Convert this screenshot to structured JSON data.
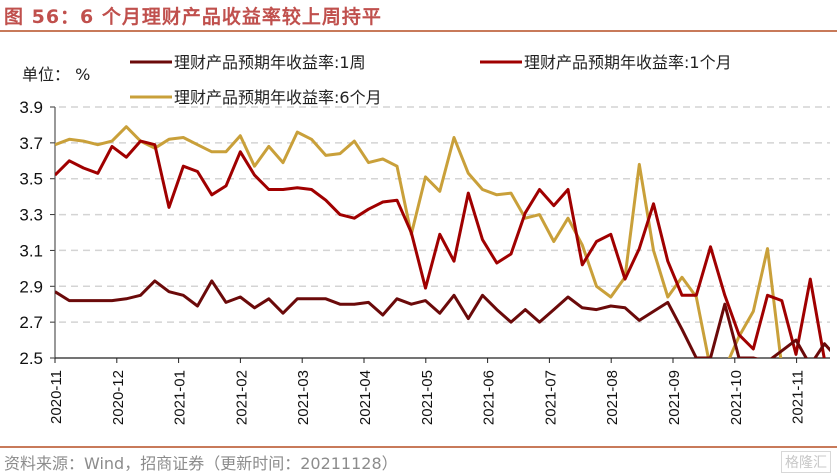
{
  "header": {
    "title": "图 56：6 个月理财产品收益率较上周持平"
  },
  "footer": {
    "source": "资料来源：Wind，招商证券（更新时间：20211128）",
    "watermark": "格隆汇"
  },
  "chart_data": {
    "type": "line",
    "title": "图 56：6 个月理财产品收益率较上周持平",
    "unit_label": "单位： %",
    "xlabel": "",
    "ylabel": "%",
    "ylim": [
      2.5,
      3.9
    ],
    "yticks": [
      "3.9",
      "3.7",
      "3.5",
      "3.3",
      "3.1",
      "2.9",
      "2.7",
      "2.5"
    ],
    "ytick_values": [
      3.9,
      3.7,
      3.5,
      3.3,
      3.1,
      2.9,
      2.7,
      2.5
    ],
    "xticks": [
      "2020-11",
      "2020-12",
      "2021-01",
      "2021-02",
      "2021-03",
      "2021-04",
      "2021-05",
      "2021-06",
      "2021-07",
      "2021-08",
      "2021-09",
      "2021-10",
      "2021-11"
    ],
    "x_unit": "weeks since 2020-11 (weekly observations)",
    "grid": "horizontal dashed",
    "legend": "top",
    "series": [
      {
        "name": "理财产品预期年收益率:1周",
        "color": "#6b0a0a",
        "values": [
          2.87,
          2.82,
          2.82,
          2.82,
          2.82,
          2.83,
          2.85,
          2.93,
          2.87,
          2.85,
          2.79,
          2.93,
          2.81,
          2.84,
          2.78,
          2.83,
          2.75,
          2.83,
          2.83,
          2.83,
          2.8,
          2.8,
          2.81,
          2.74,
          2.83,
          2.8,
          2.82,
          2.75,
          2.85,
          2.72,
          2.85,
          2.77,
          2.7,
          2.77,
          2.7,
          2.77,
          2.84,
          2.78,
          2.77,
          2.79,
          2.78,
          2.71,
          2.76,
          2.81,
          2.66,
          2.5,
          2.5,
          2.8,
          2.5,
          2.5,
          2.48,
          2.54,
          2.6,
          2.46,
          2.58,
          2.49
        ]
      },
      {
        "name": "理财产品预期年收益率:1个月",
        "color": "#a00000",
        "values": [
          3.52,
          3.6,
          3.56,
          3.53,
          3.68,
          3.62,
          3.71,
          3.69,
          3.34,
          3.57,
          3.54,
          3.41,
          3.46,
          3.65,
          3.52,
          3.44,
          3.44,
          3.45,
          3.44,
          3.38,
          3.3,
          3.28,
          3.33,
          3.37,
          3.38,
          3.2,
          2.89,
          3.19,
          3.04,
          3.42,
          3.16,
          3.03,
          3.08,
          3.31,
          3.44,
          3.35,
          3.44,
          3.02,
          3.15,
          3.19,
          2.94,
          3.11,
          3.36,
          3.04,
          2.85,
          2.85,
          3.12,
          2.85,
          2.63,
          2.55,
          2.85,
          2.82,
          2.52,
          2.94,
          2.49,
          2.49
        ]
      },
      {
        "name": "理财产品预期年收益率:6个月",
        "color": "#c9a03a",
        "values": [
          3.69,
          3.72,
          3.71,
          3.69,
          3.71,
          3.79,
          3.71,
          3.67,
          3.72,
          3.73,
          3.69,
          3.65,
          3.65,
          3.74,
          3.57,
          3.68,
          3.59,
          3.76,
          3.72,
          3.63,
          3.64,
          3.71,
          3.59,
          3.61,
          3.57,
          3.19,
          3.51,
          3.43,
          3.73,
          3.53,
          3.44,
          3.41,
          3.42,
          3.28,
          3.3,
          3.15,
          3.28,
          3.13,
          2.9,
          2.84,
          2.95,
          3.58,
          3.1,
          2.84,
          2.95,
          2.84,
          2.44,
          2.44,
          2.62,
          2.76,
          3.11,
          2.45,
          2.45,
          2.45,
          2.45,
          2.45
        ]
      }
    ]
  }
}
